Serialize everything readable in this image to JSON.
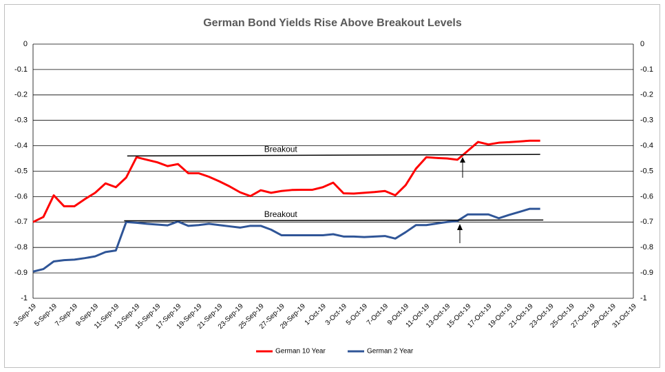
{
  "chart_data": {
    "type": "line",
    "title": "German Bond Yields Rise Above Breakout Levels",
    "categories": [
      "3-Sep-19",
      null,
      "5-Sep-19",
      null,
      "7-Sep-19",
      null,
      "9-Sep-19",
      null,
      "11-Sep-19",
      null,
      "13-Sep-19",
      null,
      "15-Sep-19",
      null,
      "17-Sep-19",
      null,
      "19-Sep-19",
      null,
      "21-Sep-19",
      null,
      "23-Sep-19",
      null,
      "25-Sep-19",
      null,
      "27-Sep-19",
      null,
      "29-Sep-19",
      null,
      "1-Oct-19",
      null,
      "3-Oct-19",
      null,
      "5-Oct-19",
      null,
      "7-Oct-19",
      null,
      "9-Oct-19",
      null,
      "11-Oct-19",
      null,
      "13-Oct-19",
      null,
      "15-Oct-19",
      null,
      "17-Oct-19",
      null,
      "19-Oct-19",
      null,
      "21-Oct-19",
      null,
      "23-Oct-19",
      null,
      "25-Oct-19",
      null,
      "27-Oct-19",
      null,
      "29-Oct-19",
      null,
      "31-Oct-19"
    ],
    "series": [
      {
        "name": "German 10 Year",
        "color": "#ff0000",
        "values": [
          -0.7,
          -0.68,
          -0.595,
          -0.638,
          -0.638,
          -0.61,
          -0.585,
          -0.548,
          -0.563,
          -0.525,
          -0.445,
          -0.455,
          -0.465,
          -0.48,
          -0.472,
          -0.508,
          -0.508,
          -0.522,
          -0.54,
          -0.56,
          -0.583,
          -0.598,
          -0.575,
          -0.585,
          -0.578,
          -0.574,
          -0.573,
          -0.573,
          -0.563,
          -0.545,
          -0.587,
          -0.588,
          -0.585,
          -0.582,
          -0.578,
          -0.595,
          -0.555,
          -0.49,
          -0.445,
          -0.448,
          -0.45,
          -0.455,
          -0.42,
          -0.385,
          -0.395,
          -0.388,
          -0.386,
          -0.383,
          -0.38,
          -0.38,
          null,
          null,
          null,
          null,
          null,
          null,
          null,
          null,
          null
        ]
      },
      {
        "name": "German 2 Year",
        "color": "#2f5597",
        "values": [
          -0.895,
          -0.885,
          -0.855,
          -0.85,
          -0.848,
          -0.842,
          -0.835,
          -0.818,
          -0.812,
          -0.7,
          -0.703,
          -0.707,
          -0.71,
          -0.713,
          -0.698,
          -0.715,
          -0.712,
          -0.707,
          -0.712,
          -0.717,
          -0.722,
          -0.715,
          -0.715,
          -0.73,
          -0.752,
          -0.752,
          -0.752,
          -0.752,
          -0.752,
          -0.748,
          -0.757,
          -0.757,
          -0.759,
          -0.757,
          -0.755,
          -0.765,
          -0.74,
          -0.712,
          -0.712,
          -0.706,
          -0.7,
          -0.696,
          -0.67,
          -0.67,
          -0.67,
          -0.685,
          -0.672,
          -0.66,
          -0.648,
          -0.648,
          null,
          null,
          null,
          null,
          null,
          null,
          null,
          null,
          null
        ]
      }
    ],
    "annotations": [
      {
        "label": "Breakout",
        "x": [
          9.1,
          49
        ],
        "y": [
          -0.44,
          -0.434
        ]
      },
      {
        "label": "Breakout",
        "x": [
          8.8,
          49.3
        ],
        "y": [
          -0.695,
          -0.692
        ]
      }
    ],
    "ylim": [
      -1,
      0
    ],
    "yticks": [
      0,
      -0.1,
      -0.2,
      -0.3,
      -0.4,
      -0.5,
      -0.6,
      -0.7,
      -0.8,
      -0.9,
      -1
    ],
    "y2lim": [
      -1,
      0
    ],
    "y2ticks": [
      0,
      -0.1,
      -0.2,
      -0.3,
      -0.4,
      -0.5,
      -0.6,
      -0.7,
      -0.8,
      -0.9,
      -1
    ],
    "grid": true,
    "legend": "bottom"
  }
}
